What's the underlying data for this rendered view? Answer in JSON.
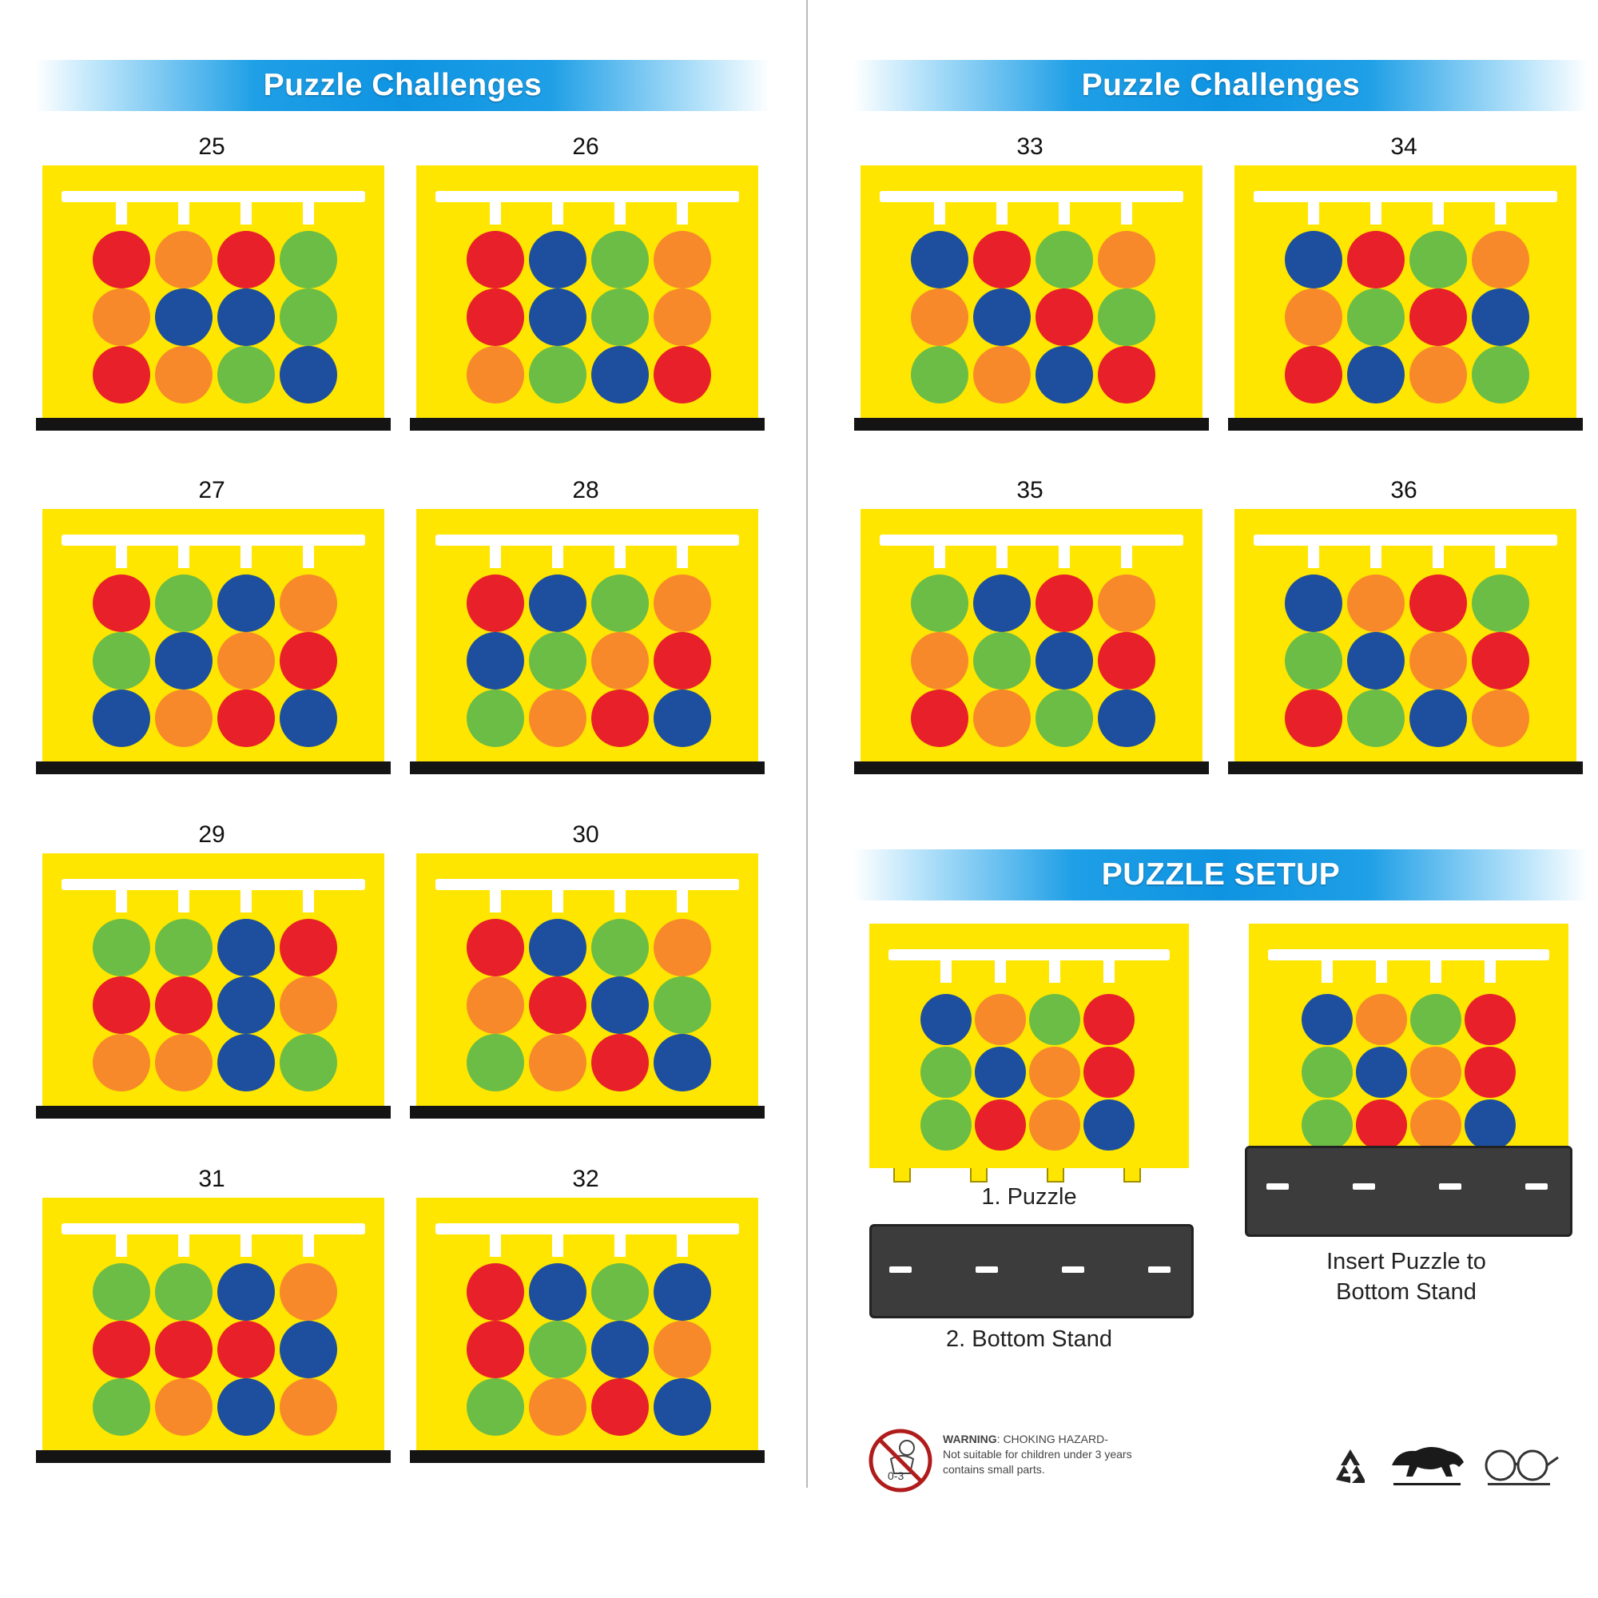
{
  "colors": {
    "R": "#e8202a",
    "O": "#f7892b",
    "G": "#6cbd45",
    "B": "#1d4f9e",
    "board": "#ffe600"
  },
  "left_banner": {
    "title": "Puzzle Challenges"
  },
  "right_banner": {
    "title": "Puzzle Challenges"
  },
  "setup_banner": {
    "title": "PUZZLE SETUP"
  },
  "puzzles": [
    {
      "number": "25",
      "grid": [
        [
          "R",
          "O",
          "R",
          "G"
        ],
        [
          "O",
          "B",
          "B",
          "G"
        ],
        [
          "R",
          "O",
          "G",
          "B"
        ]
      ]
    },
    {
      "number": "26",
      "grid": [
        [
          "R",
          "B",
          "G",
          "O"
        ],
        [
          "R",
          "B",
          "G",
          "O"
        ],
        [
          "O",
          "G",
          "B",
          "R"
        ]
      ]
    },
    {
      "number": "27",
      "grid": [
        [
          "R",
          "G",
          "B",
          "O"
        ],
        [
          "G",
          "B",
          "O",
          "R"
        ],
        [
          "B",
          "O",
          "R",
          "B"
        ]
      ]
    },
    {
      "number": "28",
      "grid": [
        [
          "R",
          "B",
          "G",
          "O"
        ],
        [
          "B",
          "G",
          "O",
          "R"
        ],
        [
          "G",
          "O",
          "R",
          "B"
        ]
      ]
    },
    {
      "number": "29",
      "grid": [
        [
          "G",
          "G",
          "B",
          "R"
        ],
        [
          "R",
          "R",
          "B",
          "O"
        ],
        [
          "O",
          "O",
          "B",
          "G"
        ]
      ]
    },
    {
      "number": "30",
      "grid": [
        [
          "R",
          "B",
          "G",
          "O"
        ],
        [
          "O",
          "R",
          "B",
          "G"
        ],
        [
          "G",
          "O",
          "R",
          "B"
        ]
      ]
    },
    {
      "number": "31",
      "grid": [
        [
          "G",
          "G",
          "B",
          "O"
        ],
        [
          "R",
          "R",
          "R",
          "B"
        ],
        [
          "G",
          "O",
          "B",
          "O"
        ]
      ]
    },
    {
      "number": "32",
      "grid": [
        [
          "R",
          "B",
          "G",
          "B"
        ],
        [
          "R",
          "G",
          "B",
          "O"
        ],
        [
          "G",
          "O",
          "R",
          "B"
        ]
      ]
    },
    {
      "number": "33",
      "grid": [
        [
          "B",
          "R",
          "G",
          "O"
        ],
        [
          "O",
          "B",
          "R",
          "G"
        ],
        [
          "G",
          "O",
          "B",
          "R"
        ]
      ]
    },
    {
      "number": "34",
      "grid": [
        [
          "B",
          "R",
          "G",
          "O"
        ],
        [
          "O",
          "G",
          "R",
          "B"
        ],
        [
          "R",
          "B",
          "O",
          "G"
        ]
      ]
    },
    {
      "number": "35",
      "grid": [
        [
          "G",
          "B",
          "R",
          "O"
        ],
        [
          "O",
          "G",
          "B",
          "R"
        ],
        [
          "R",
          "O",
          "G",
          "B"
        ]
      ]
    },
    {
      "number": "36",
      "grid": [
        [
          "B",
          "O",
          "R",
          "G"
        ],
        [
          "G",
          "B",
          "O",
          "R"
        ],
        [
          "R",
          "G",
          "B",
          "O"
        ]
      ]
    }
  ],
  "setup": {
    "puzzle_grid": [
      [
        "B",
        "O",
        "G",
        "R"
      ],
      [
        "G",
        "B",
        "O",
        "R"
      ],
      [
        "G",
        "R",
        "O",
        "B"
      ]
    ],
    "inserted_grid": [
      [
        "B",
        "O",
        "G",
        "R"
      ],
      [
        "G",
        "B",
        "O",
        "R"
      ],
      [
        "G",
        "R",
        "O",
        "B"
      ]
    ],
    "step1_label": "1. Puzzle",
    "step2_label": "2. Bottom Stand",
    "insert_label_line1": "Insert Puzzle to",
    "insert_label_line2": "Bottom Stand"
  },
  "warning": {
    "heading": "WARNING",
    "line1": ": CHOKING HAZARD-",
    "line2": "Not suitable for children under 3 years",
    "line3": "contains small parts.",
    "age_badge": "0-3"
  },
  "icons": [
    "no-small-children-icon",
    "recycle-icon",
    "lion-logo-icon",
    "spectacles-logo-icon"
  ]
}
